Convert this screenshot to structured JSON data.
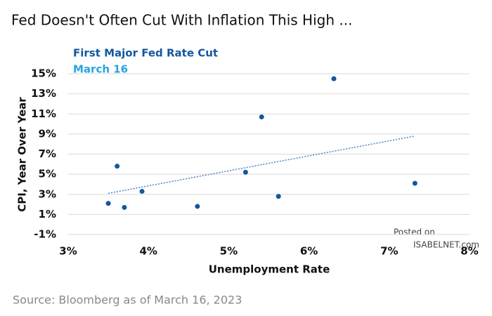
{
  "chart_data": {
    "type": "scatter",
    "title": "Fed Doesn't Often Cut With Inflation This High ...",
    "xlabel": "Unemployment Rate",
    "ylabel": "CPI, Year Over Year",
    "series": [
      {
        "name": "First Major Fed Rate Cut",
        "color": "#12589e",
        "x": [
          3.5,
          3.61,
          3.7,
          3.92,
          4.61,
          5.21,
          5.41,
          5.62,
          6.31,
          7.32
        ],
        "y": [
          2.1,
          5.8,
          1.7,
          3.3,
          1.8,
          5.2,
          10.7,
          2.8,
          14.5,
          4.1
        ]
      }
    ],
    "annotation": "March 16",
    "annotation_color": "#29a3dd",
    "trendline": {
      "x": [
        3.5,
        7.32
      ],
      "y": [
        3.1,
        8.8
      ],
      "color": "#4a7fc1"
    },
    "xlim": [
      3,
      8
    ],
    "xticks": [
      {
        "value": 3,
        "label": "3%"
      },
      {
        "value": 4,
        "label": "4%"
      },
      {
        "value": 5,
        "label": "5%"
      },
      {
        "value": 6,
        "label": "6%"
      },
      {
        "value": 7,
        "label": "7%"
      },
      {
        "value": 8,
        "label": "8%"
      }
    ],
    "ylim": [
      -1,
      15
    ],
    "yticks": [
      {
        "value": -1,
        "label": "-1%"
      },
      {
        "value": 1,
        "label": "1%"
      },
      {
        "value": 3,
        "label": "3%"
      },
      {
        "value": 5,
        "label": "5%"
      },
      {
        "value": 7,
        "label": "7%"
      },
      {
        "value": 9,
        "label": "9%"
      },
      {
        "value": 11,
        "label": "11%"
      },
      {
        "value": 13,
        "label": "13%"
      },
      {
        "value": 15,
        "label": "15%"
      }
    ],
    "grid": true,
    "watermark": [
      "Posted on",
      "ISABELNET.com"
    ],
    "source": "Source: Bloomberg as of March 16, 2023"
  }
}
